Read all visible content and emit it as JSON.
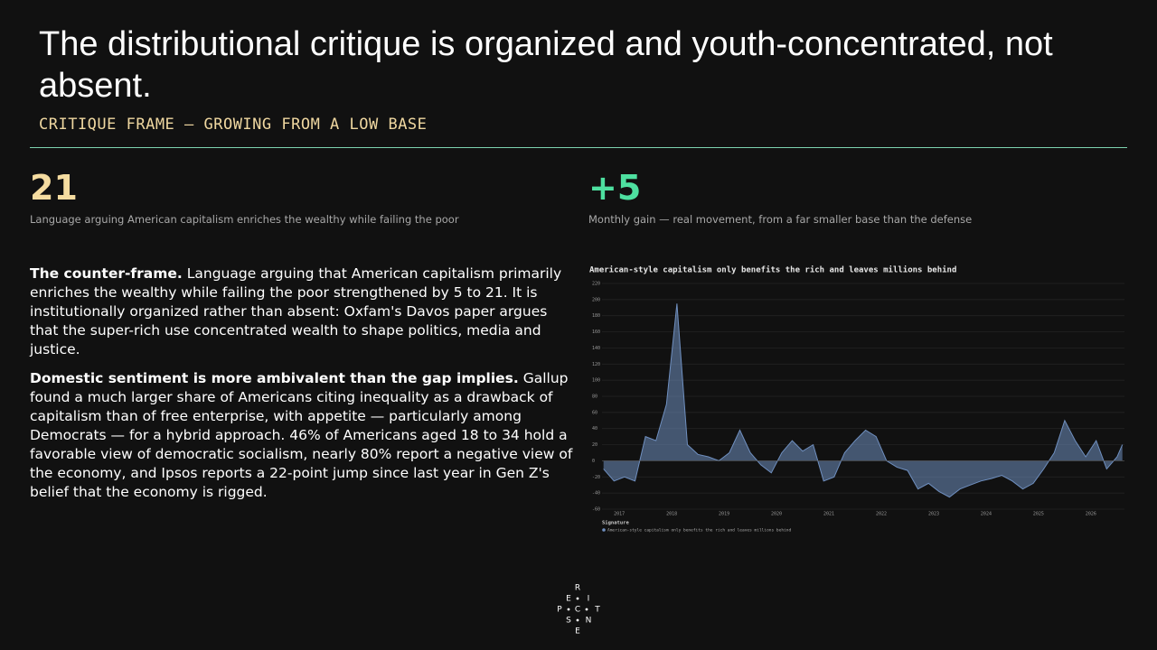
{
  "header": {
    "title": "The distributional critique is organized and youth-concentrated, not absent.",
    "subtitle": "CRITIQUE FRAME — GROWING FROM A LOW BASE"
  },
  "stats": [
    {
      "value": "21",
      "label": "Language arguing American capitalism enriches the wealthy while failing the poor"
    },
    {
      "value": "+5",
      "label": "Monthly gain — real movement, from a far smaller base than the defense"
    }
  ],
  "paragraphs": [
    {
      "lead": "The counter-frame.",
      "text": "Language arguing that American capitalism primarily enriches the wealthy while failing the poor strengthened by 5 to 21. It is institutionally organized rather than absent: Oxfam's Davos paper argues that the super-rich use concentrated wealth to shape politics, media and justice."
    },
    {
      "lead": "Domestic sentiment is more ambivalent than the gap implies.",
      "text": "Gallup found a much larger share of Americans citing inequality as a drawback of capitalism than of free enterprise, with appetite — particularly among Democrats — for a hybrid approach. 46% of Americans aged 18 to 34 hold a favorable view of democratic socialism, nearly 80% report a negative view of the economy, and Ipsos reports a 22-point jump since last year in Gen Z's belief that the economy is rigged."
    }
  ],
  "chart_data": {
    "type": "area",
    "title": "American-style capitalism only benefits the rich and leaves millions behind",
    "legend_title": "Signature",
    "x": [
      2016.7,
      2016.9,
      2017.1,
      2017.3,
      2017.5,
      2017.7,
      2017.9,
      2018.1,
      2018.3,
      2018.5,
      2018.7,
      2018.9,
      2019.1,
      2019.3,
      2019.5,
      2019.7,
      2019.9,
      2020.1,
      2020.3,
      2020.5,
      2020.7,
      2020.9,
      2021.1,
      2021.3,
      2021.5,
      2021.7,
      2021.9,
      2022.1,
      2022.3,
      2022.5,
      2022.7,
      2022.9,
      2023.1,
      2023.3,
      2023.5,
      2023.7,
      2023.9,
      2024.1,
      2024.3,
      2024.5,
      2024.7,
      2024.9,
      2025.1,
      2025.3,
      2025.5,
      2025.7,
      2025.9,
      2026.1,
      2026.3,
      2026.5,
      2026.6
    ],
    "series": [
      {
        "name": "American-style capitalism only benefits the rich and leaves millions behind",
        "color": "#6f8fbf",
        "values": [
          -10,
          -25,
          -20,
          -25,
          30,
          25,
          70,
          195,
          20,
          8,
          5,
          0,
          10,
          38,
          10,
          -5,
          -15,
          10,
          25,
          12,
          20,
          -25,
          -20,
          10,
          25,
          38,
          30,
          0,
          -8,
          -12,
          -35,
          -28,
          -38,
          -45,
          -35,
          -30,
          -25,
          -22,
          -18,
          -25,
          -35,
          -28,
          -10,
          10,
          50,
          25,
          5,
          25,
          -10,
          5,
          20
        ]
      }
    ],
    "xlim": [
      2016.67,
      2026.64
    ],
    "xticks": [
      2017,
      2018,
      2019,
      2020,
      2021,
      2022,
      2023,
      2024,
      2025,
      2026
    ],
    "ylim": [
      -60,
      220
    ],
    "yticks": [
      -60,
      -40,
      -20,
      0,
      20,
      40,
      60,
      80,
      100,
      120,
      140,
      160,
      180,
      200,
      220
    ],
    "grid": true
  },
  "logo": {
    "letters": [
      "R",
      "E",
      "I",
      "P",
      "C",
      "T",
      "S",
      "N",
      "E"
    ]
  }
}
